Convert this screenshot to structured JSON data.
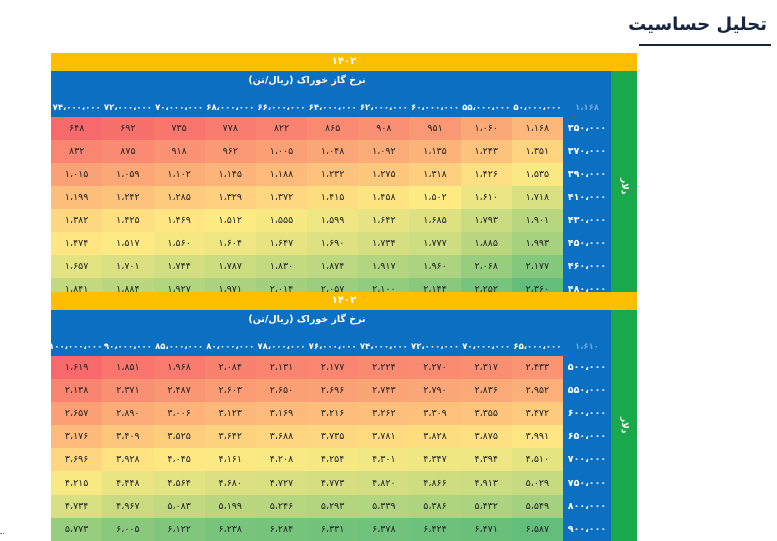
{
  "page": {
    "title": "تحلیل حساسیت"
  },
  "tables": [
    {
      "year": "۱۴۰۲",
      "col_group_label": "نرخ گاز خوراک (ریال/تن)",
      "corner_label": "۱،۱۶۸",
      "row_group_label": "دلار",
      "columns": [
        "۵۰،۰۰۰،۰۰۰",
        "۵۵،۰۰۰،۰۰۰",
        "۶۰،۰۰۰،۰۰۰",
        "۶۲،۰۰۰،۰۰۰",
        "۶۴،۰۰۰،۰۰۰",
        "۶۶،۰۰۰،۰۰۰",
        "۶۸،۰۰۰،۰۰۰",
        "۷۰،۰۰۰،۰۰۰",
        "۷۲،۰۰۰،۰۰۰",
        "۷۴،۰۰۰،۰۰۰"
      ],
      "rows": [
        {
          "label": "۳۵۰،۰۰۰",
          "values": [
            "۱،۱۶۸",
            "۱،۰۶۰",
            "۹۵۱",
            "۹۰۸",
            "۸۶۵",
            "۸۲۲",
            "۷۷۸",
            "۷۳۵",
            "۶۹۲",
            "۶۴۸"
          ]
        },
        {
          "label": "۳۷۰،۰۰۰",
          "values": [
            "۱،۳۵۱",
            "۱،۲۴۳",
            "۱،۱۳۵",
            "۱،۰۹۲",
            "۱،۰۴۸",
            "۱،۰۰۵",
            "۹۶۲",
            "۹۱۸",
            "۸۷۵",
            "۸۳۲"
          ]
        },
        {
          "label": "۳۹۰،۰۰۰",
          "values": [
            "۱،۵۳۵",
            "۱،۴۲۶",
            "۱،۳۱۸",
            "۱،۲۷۵",
            "۱،۲۳۲",
            "۱،۱۸۸",
            "۱،۱۴۵",
            "۱،۱۰۲",
            "۱،۰۵۹",
            "۱،۰۱۵"
          ]
        },
        {
          "label": "۴۱۰،۰۰۰",
          "values": [
            "۱،۷۱۸",
            "۱،۶۱۰",
            "۱،۵۰۲",
            "۱،۴۵۸",
            "۱،۴۱۵",
            "۱،۳۷۲",
            "۱،۳۲۹",
            "۱،۲۸۵",
            "۱،۲۴۲",
            "۱،۱۹۹"
          ]
        },
        {
          "label": "۴۳۰،۰۰۰",
          "values": [
            "۱،۹۰۱",
            "۱،۷۹۳",
            "۱،۶۸۵",
            "۱،۶۴۲",
            "۱،۵۹۹",
            "۱،۵۵۵",
            "۱،۵۱۲",
            "۱،۴۶۹",
            "۱،۴۲۵",
            "۱،۳۸۲"
          ]
        },
        {
          "label": "۴۵۰،۰۰۰",
          "values": [
            "۱،۹۹۳",
            "۱،۸۸۵",
            "۱،۷۷۷",
            "۱،۷۳۴",
            "۱،۶۹۰",
            "۱،۶۴۷",
            "۱،۶۰۴",
            "۱،۵۶۰",
            "۱،۵۱۷",
            "۱،۴۷۴"
          ]
        },
        {
          "label": "۴۶۰،۰۰۰",
          "values": [
            "۲،۱۷۷",
            "۲،۰۶۸",
            "۱،۹۶۰",
            "۱،۹۱۷",
            "۱،۸۷۴",
            "۱،۸۳۰",
            "۱،۷۸۷",
            "۱،۷۴۴",
            "۱،۷۰۱",
            "۱،۶۵۷"
          ]
        },
        {
          "label": "۴۸۰،۰۰۰",
          "values": [
            "۲،۳۶۰",
            "۲،۲۵۲",
            "۲،۱۴۴",
            "۲،۱۰۰",
            "۲،۰۵۷",
            "۲،۰۱۴",
            "۱،۹۷۱",
            "۱،۹۲۷",
            "۱،۸۸۴",
            "۱،۸۴۱"
          ]
        }
      ]
    },
    {
      "year": "۱۴۰۲",
      "col_group_label": "نرخ گاز خوراک (ریال/تن)",
      "corner_label": "۱،۶۱۰",
      "row_group_label": "دلار",
      "columns": [
        "۶۵،۰۰۰،۰۰۰",
        "۷۰،۰۰۰،۰۰۰",
        "۷۲،۰۰۰،۰۰۰",
        "۷۴،۰۰۰،۰۰۰",
        "۷۶،۰۰۰،۰۰۰",
        "۷۸،۰۰۰،۰۰۰",
        "۸۰،۰۰۰،۰۰۰",
        "۸۵،۰۰۰،۰۰۰",
        "۹۰،۰۰۰،۰۰۰",
        "۱۰۰،۰۰۰،۰۰۰"
      ],
      "rows": [
        {
          "label": "۵۰۰،۰۰۰",
          "values": [
            "۲،۴۳۳",
            "۲،۳۱۷",
            "۲،۲۷۰",
            "۲،۲۲۴",
            "۲،۱۷۷",
            "۲،۱۳۱",
            "۲،۰۸۴",
            "۱،۹۶۸",
            "۱،۸۵۱",
            "۱،۶۱۹"
          ]
        },
        {
          "label": "۵۵۰،۰۰۰",
          "values": [
            "۲،۹۵۲",
            "۲،۸۳۶",
            "۲،۷۹۰",
            "۲،۷۴۳",
            "۲،۶۹۶",
            "۲،۶۵۰",
            "۲،۶۰۳",
            "۲،۴۸۷",
            "۲،۳۷۱",
            "۲،۱۳۸"
          ]
        },
        {
          "label": "۶۰۰،۰۰۰",
          "values": [
            "۳،۴۷۲",
            "۳،۳۵۵",
            "۳،۳۰۹",
            "۳،۲۶۲",
            "۳،۲۱۶",
            "۳،۱۶۹",
            "۳،۱۲۳",
            "۳،۰۰۶",
            "۲،۸۹۰",
            "۲،۶۵۷"
          ]
        },
        {
          "label": "۶۵۰،۰۰۰",
          "values": [
            "۳،۹۹۱",
            "۳،۸۷۵",
            "۳،۸۲۸",
            "۳،۷۸۱",
            "۳،۷۳۵",
            "۳،۶۸۸",
            "۳،۶۴۲",
            "۳،۵۲۵",
            "۳،۴۰۹",
            "۳،۱۷۶"
          ]
        },
        {
          "label": "۷۰۰،۰۰۰",
          "values": [
            "۴،۵۱۰",
            "۴،۳۹۴",
            "۴،۳۴۷",
            "۴،۳۰۱",
            "۴،۲۵۴",
            "۴،۲۰۸",
            "۴،۱۶۱",
            "۴،۰۴۵",
            "۳،۹۲۸",
            "۳،۶۹۶"
          ]
        },
        {
          "label": "۷۵۰،۰۰۰",
          "values": [
            "۵،۰۲۹",
            "۴،۹۱۳",
            "۴،۸۶۶",
            "۴،۸۲۰",
            "۴،۷۷۳",
            "۴،۷۲۷",
            "۴،۶۸۰",
            "۴،۵۶۴",
            "۴،۴۴۸",
            "۴،۲۱۵"
          ]
        },
        {
          "label": "۸۰۰،۰۰۰",
          "values": [
            "۵،۵۴۹",
            "۵،۴۳۲",
            "۵،۳۸۶",
            "۵،۳۳۹",
            "۵،۲۹۳",
            "۵،۲۴۶",
            "۵،۱۹۹",
            "۵،۰۸۳",
            "۴،۹۶۷",
            "۴،۷۳۴"
          ]
        },
        {
          "label": "۹۰۰،۰۰۰",
          "values": [
            "۶،۵۸۷",
            "۶،۴۷۱",
            "۶،۴۲۴",
            "۶،۳۷۸",
            "۶،۳۳۱",
            "۶،۲۸۴",
            "۶،۲۳۸",
            "۶،۱۲۲",
            "۶،۰۰۵",
            "۵،۷۷۳"
          ]
        }
      ]
    }
  ],
  "heatmap_colors": {
    "low": "#f8696b",
    "mid": "#ffeb84",
    "high": "#63be7b"
  }
}
